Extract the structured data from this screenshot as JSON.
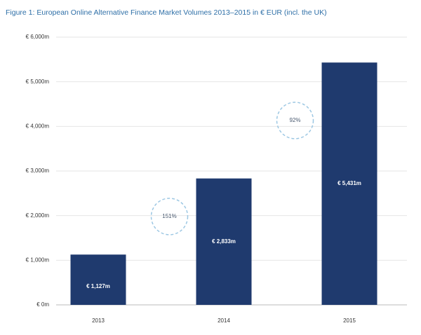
{
  "chart_data": {
    "type": "bar",
    "title": "Figure 1: European Online Alternative Finance Market Volumes 2013–2015 in € EUR (incl. the UK)",
    "categories": [
      "2013",
      "2014",
      "2015"
    ],
    "values": [
      1127,
      2833,
      5431
    ],
    "value_labels": [
      "€ 1,127m",
      "€ 2,833m",
      "€ 5,431m"
    ],
    "color": "#1f3a6e",
    "ylim": [
      0,
      6000
    ],
    "yticks": [
      {
        "value": 0,
        "label": "€ 0m"
      },
      {
        "value": 1000,
        "label": "€ 1,000m"
      },
      {
        "value": 2000,
        "label": "€ 2,000m"
      },
      {
        "value": 3000,
        "label": "€ 3,000m"
      },
      {
        "value": 4000,
        "label": "€ 4,000m"
      },
      {
        "value": 5000,
        "label": "€ 5,000m"
      },
      {
        "value": 6000,
        "label": "€ 6,000m"
      }
    ],
    "grid": true,
    "annotations": [
      {
        "text": "151%"
      },
      {
        "text": "92%"
      }
    ]
  }
}
